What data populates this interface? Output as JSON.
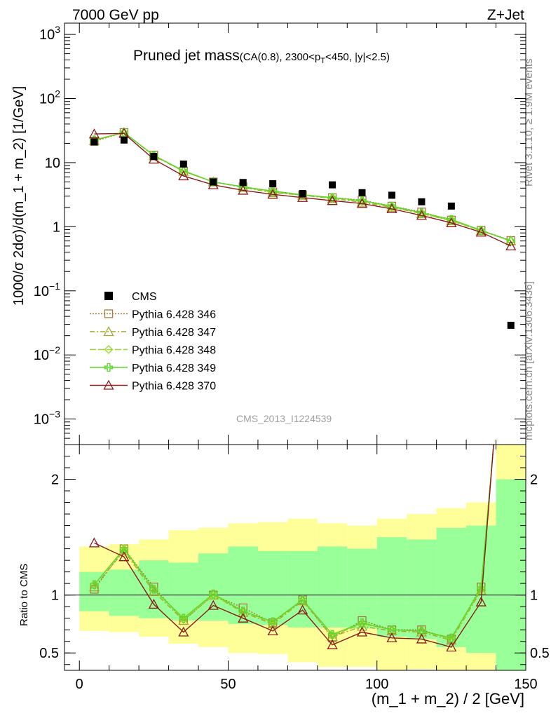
{
  "header": {
    "left": "7000 GeV pp",
    "right": "Z+Jet"
  },
  "side": {
    "top": "Rivet 3.1.10, ≥ 1.9M events",
    "bottom": "mcplots.cern.ch [arXiv:1306.3436]"
  },
  "plot": {
    "title": "Pruned jet mass",
    "subtitle_pre": "(CA(0.8), 2300<p",
    "subtitle_sub": "T",
    "subtitle_post": "<450, |y|<2.5)"
  },
  "watermark": "CMS_2013_I1224539",
  "chart_data": [
    {
      "type": "scatter",
      "ylabel": "1000/σ 2dσ)/d(m_1 + m_2) [1/GeV]",
      "yscale": "log",
      "ylim": [
        0.0004,
        1500
      ],
      "xlim": [
        -5,
        150
      ],
      "yticks": [
        {
          "v": 1000,
          "base": "10",
          "exp": "3"
        },
        {
          "v": 100,
          "base": "10",
          "exp": "2"
        },
        {
          "v": 10,
          "base": "10",
          "exp": ""
        },
        {
          "v": 1,
          "base": "1",
          "exp": ""
        },
        {
          "v": 0.1,
          "base": "10",
          "exp": "−1"
        },
        {
          "v": 0.01,
          "base": "10",
          "exp": "−2"
        },
        {
          "v": 0.001,
          "base": "10",
          "exp": "−3"
        }
      ],
      "x": [
        5,
        15,
        25,
        35,
        45,
        55,
        65,
        75,
        85,
        95,
        105,
        115,
        125,
        135,
        145
      ],
      "data": {
        "name": "CMS",
        "values": [
          21.0,
          22.5,
          12.5,
          9.5,
          5.0,
          4.9,
          4.7,
          3.3,
          4.5,
          3.4,
          3.1,
          2.45,
          2.1,
          null,
          0.029
        ]
      },
      "series": [
        {
          "name": "Pythia 6.428 346",
          "color": "#a57a3d",
          "marker": "square",
          "dash": "2,2",
          "values": [
            21.5,
            29.5,
            13.1,
            7.4,
            5.0,
            4.2,
            3.5,
            3.1,
            2.85,
            2.6,
            2.1,
            1.7,
            1.27,
            0.88,
            0.61
          ]
        },
        {
          "name": "Pythia 6.428 347",
          "color": "#a4a82e",
          "marker": "triangle",
          "dash": "7,3,2,3",
          "values": [
            22.0,
            29.5,
            12.7,
            7.3,
            5.0,
            4.1,
            3.4,
            3.1,
            2.75,
            2.4,
            2.0,
            1.6,
            1.24,
            0.86,
            0.6
          ]
        },
        {
          "name": "Pythia 6.428 348",
          "color": "#9bd62a",
          "marker": "diamond",
          "dash": "9,3",
          "values": [
            22.5,
            29.5,
            13.0,
            7.3,
            5.0,
            4.2,
            3.45,
            3.15,
            2.8,
            2.5,
            2.05,
            1.62,
            1.25,
            0.87,
            0.6
          ]
        },
        {
          "name": "Pythia 6.428 349",
          "color": "#5ad827",
          "marker": "cross",
          "dash": "",
          "values": [
            22.6,
            29.5,
            12.9,
            7.5,
            5.0,
            4.2,
            3.6,
            3.15,
            2.85,
            2.55,
            2.1,
            1.65,
            1.3,
            0.88,
            0.6
          ]
        },
        {
          "name": "Pythia 6.428 370",
          "color": "#8b1a1a",
          "marker": "triangle-open",
          "dash": "",
          "values": [
            28.0,
            28.5,
            11.3,
            6.2,
            4.5,
            3.7,
            3.2,
            2.85,
            2.55,
            2.3,
            1.9,
            1.5,
            1.15,
            0.82,
            0.5
          ]
        }
      ]
    },
    {
      "type": "line",
      "ylabel": "Ratio to CMS",
      "xlabel": "(m_1 + m_2) / 2 [GeV]",
      "ylim": [
        0.35,
        2.3
      ],
      "xlim": [
        -5,
        150
      ],
      "xticks": [
        0,
        50,
        100,
        150
      ],
      "yticks": [
        0.5,
        1,
        2
      ],
      "bands": {
        "edges": [
          0,
          10,
          20,
          30,
          40,
          50,
          60,
          70,
          80,
          90,
          100,
          110,
          120,
          130,
          140,
          150
        ],
        "green": [
          [
            0.86,
            1.2
          ],
          [
            0.82,
            1.22
          ],
          [
            0.8,
            1.3
          ],
          [
            0.78,
            1.28
          ],
          [
            0.78,
            1.36
          ],
          [
            0.75,
            1.42
          ],
          [
            0.74,
            1.38
          ],
          [
            0.72,
            1.38
          ],
          [
            0.72,
            1.42
          ],
          [
            0.71,
            1.4
          ],
          [
            0.64,
            1.5
          ],
          [
            0.62,
            1.48
          ],
          [
            0.55,
            1.58
          ],
          [
            0.5,
            1.6
          ],
          [
            0.3,
            2.0
          ]
        ],
        "yellow": [
          [
            0.69,
            1.42
          ],
          [
            0.68,
            1.44
          ],
          [
            0.64,
            1.48
          ],
          [
            0.58,
            1.56
          ],
          [
            0.55,
            1.58
          ],
          [
            0.5,
            1.62
          ],
          [
            0.49,
            1.63
          ],
          [
            0.42,
            1.66
          ],
          [
            0.38,
            1.62
          ],
          [
            0.38,
            1.6
          ],
          [
            0.35,
            1.66
          ],
          [
            0.36,
            1.7
          ],
          [
            0.35,
            1.75
          ],
          [
            0.3,
            1.8
          ],
          [
            0.3,
            2.3
          ]
        ]
      },
      "series": [
        {
          "name": "Pythia 6.428 346",
          "values": [
            1.05,
            1.4,
            1.07,
            0.78,
            1.0,
            0.89,
            0.76,
            0.96,
            0.63,
            0.78,
            0.7,
            0.7,
            0.62,
            1.07
          ]
        },
        {
          "name": "Pythia 6.428 347",
          "values": [
            1.07,
            1.38,
            1.03,
            0.78,
            1.0,
            0.85,
            0.75,
            0.95,
            0.64,
            0.73,
            0.69,
            0.68,
            0.61,
            1.04
          ]
        },
        {
          "name": "Pythia 6.428 348",
          "values": [
            1.09,
            1.39,
            1.05,
            0.79,
            1.0,
            0.86,
            0.76,
            0.96,
            0.65,
            0.75,
            0.7,
            0.69,
            0.62,
            1.05
          ]
        },
        {
          "name": "Pythia 6.428 349",
          "values": [
            1.09,
            1.4,
            1.05,
            0.8,
            1.01,
            0.86,
            0.77,
            0.96,
            0.66,
            0.76,
            0.7,
            0.69,
            0.63,
            1.06
          ]
        },
        {
          "name": "Pythia 6.428 370",
          "values": [
            1.45,
            1.33,
            0.92,
            0.68,
            0.91,
            0.8,
            0.69,
            0.87,
            0.57,
            0.68,
            0.63,
            0.62,
            0.55,
            0.94
          ]
        }
      ]
    }
  ]
}
